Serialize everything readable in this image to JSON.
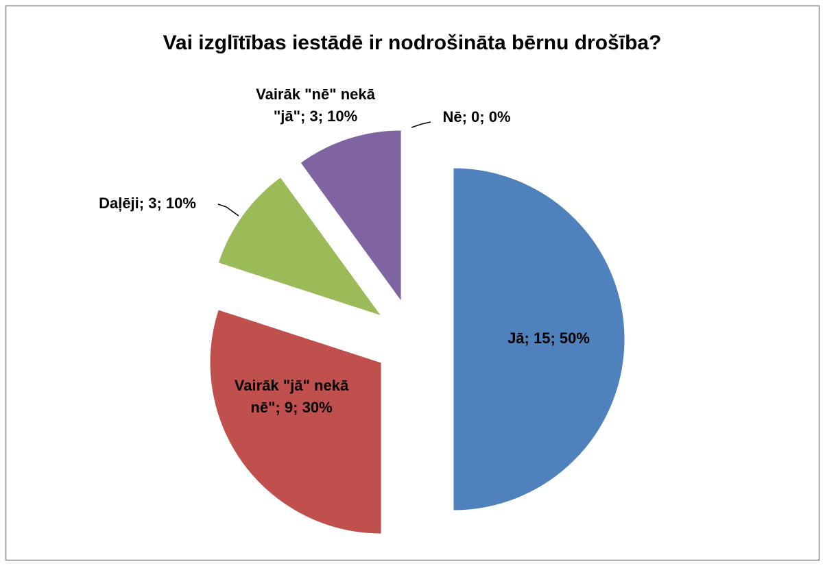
{
  "chart_data": {
    "type": "pie",
    "title": "Vai izglītības iestādē ir nodrošināta bērnu drošība?",
    "categories": [
      "Jā",
      "Vairāk \"jā\" nekā nē\"",
      "Daļēji",
      "Vairāk \"nē\" nekā \"jā\"",
      "Nē"
    ],
    "values": [
      15,
      9,
      3,
      3,
      0
    ],
    "value_labels": [
      "Jā; 15; 50%",
      "Vairāk \"jā\" nekā nē\"; 9; 30%",
      "Daļēji; 3; 10%",
      "Vairāk \"nē\" nekā \"jā\"; 3; 10%",
      "Nē; 0; 0%"
    ],
    "colors": [
      "#4f81bd",
      "#c0504d",
      "#9bbb59",
      "#8064a2",
      "#4bacc6"
    ],
    "exploded": true
  }
}
